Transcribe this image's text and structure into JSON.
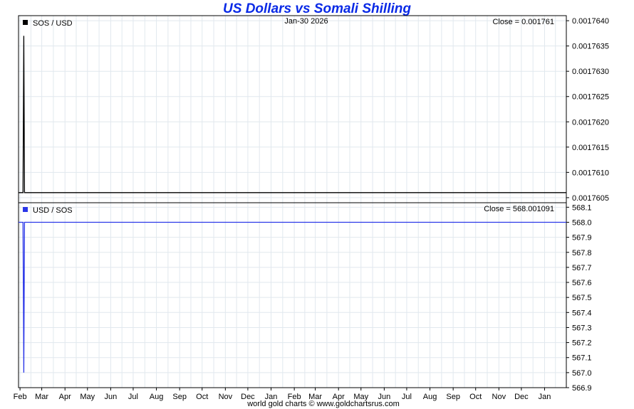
{
  "title": "US Dollars vs Somali Shilling",
  "footer": "world gold charts © www.goldchartsrus.com",
  "colors": {
    "title": "#0a2ae6",
    "top_series": "#000000",
    "bottom_series": "#2a36e8",
    "grid": "#e1e8ee"
  },
  "chart_data": [
    {
      "type": "line",
      "panel": "top",
      "legend": "SOS / USD",
      "date_label": "Jan-30  2026",
      "close_label": "Close = 0.001761",
      "series": [
        {
          "name": "SOS / USD",
          "color": "#000000",
          "x": [
            "2024-01-30",
            "2024-02-05",
            "2024-02-06",
            "2024-02-07",
            "2026-01-30"
          ],
          "values": [
            0.0017606,
            0.0017606,
            0.0017637,
            0.0017606,
            0.0017606
          ]
        }
      ],
      "x_range": [
        "2024-01-30",
        "2026-01-30"
      ],
      "ylim": [
        0.0017604,
        0.0017641
      ],
      "y_ticks": [
        "0.0017640",
        "0.0017635",
        "0.0017630",
        "0.0017625",
        "0.0017620",
        "0.0017615",
        "0.0017610",
        "0.0017605"
      ],
      "y_tick_values": [
        0.001764,
        0.0017635,
        0.001763,
        0.0017625,
        0.001762,
        0.0017615,
        0.001761,
        0.0017605
      ],
      "grid": true
    },
    {
      "type": "line",
      "panel": "bottom",
      "legend": "USD / SOS",
      "close_label": "Close = 568.001091",
      "series": [
        {
          "name": "USD / SOS",
          "color": "#2a36e8",
          "x": [
            "2024-01-30",
            "2024-02-05",
            "2024-02-06",
            "2024-02-07",
            "2026-01-30"
          ],
          "values": [
            568.0,
            568.0,
            567.0,
            568.0,
            568.0
          ]
        }
      ],
      "x_range": [
        "2024-01-30",
        "2026-01-30"
      ],
      "ylim": [
        566.9,
        568.13
      ],
      "y_ticks": [
        "568.1",
        "568.0",
        "567.9",
        "567.8",
        "567.7",
        "567.6",
        "567.5",
        "567.4",
        "567.3",
        "567.2",
        "567.1",
        "567.0",
        "566.9"
      ],
      "y_tick_values": [
        568.1,
        568.0,
        567.9,
        567.8,
        567.7,
        567.6,
        567.5,
        567.4,
        567.3,
        567.2,
        567.1,
        567.0,
        566.9
      ],
      "grid": true
    }
  ],
  "x_axis": {
    "labels": [
      "Feb",
      "Mar",
      "Apr",
      "May",
      "Jun",
      "Jul",
      "Aug",
      "Sep",
      "Oct",
      "Nov",
      "Dec",
      "Jan",
      "Feb",
      "Mar",
      "Apr",
      "May",
      "Jun",
      "Jul",
      "Aug",
      "Sep",
      "Oct",
      "Nov",
      "Dec",
      "Jan"
    ],
    "dates": [
      "2024-02-01",
      "2024-03-01",
      "2024-04-01",
      "2024-05-01",
      "2024-06-01",
      "2024-07-01",
      "2024-08-01",
      "2024-09-01",
      "2024-10-01",
      "2024-11-01",
      "2024-12-01",
      "2025-01-01",
      "2025-02-01",
      "2025-03-01",
      "2025-04-01",
      "2025-05-01",
      "2025-06-01",
      "2025-07-01",
      "2025-08-01",
      "2025-09-01",
      "2025-10-01",
      "2025-11-01",
      "2025-12-01",
      "2026-01-01"
    ]
  }
}
